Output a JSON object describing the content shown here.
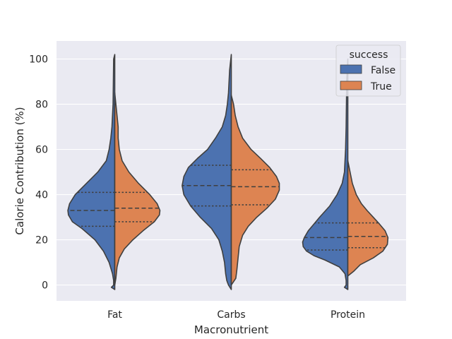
{
  "chart_data": {
    "type": "violin",
    "split": true,
    "inner": "quartile",
    "categories": [
      "Fat",
      "Carbs",
      "Protein"
    ],
    "xlabel": "Macronutrient",
    "ylabel": "Calorie Contribution (%)",
    "ylim": [
      -7,
      108
    ],
    "yticks": [
      0,
      20,
      40,
      60,
      80,
      100
    ],
    "grid": true,
    "legend": {
      "title": "success",
      "position": "top-right"
    },
    "series": [
      {
        "name": "False",
        "color": "#4c72b0",
        "violins": [
          {
            "category": "Fat",
            "quartiles": [
              26,
              33,
              41
            ],
            "profile": [
              [
                -2,
                0
              ],
              [
                -1,
                0.06
              ],
              [
                0,
                0.02
              ],
              [
                2,
                0.02
              ],
              [
                5,
                0.04
              ],
              [
                10,
                0.1
              ],
              [
                15,
                0.2
              ],
              [
                20,
                0.35
              ],
              [
                25,
                0.58
              ],
              [
                28,
                0.75
              ],
              [
                31,
                0.82
              ],
              [
                33,
                0.83
              ],
              [
                36,
                0.8
              ],
              [
                40,
                0.7
              ],
              [
                45,
                0.5
              ],
              [
                50,
                0.3
              ],
              [
                55,
                0.15
              ],
              [
                60,
                0.1
              ],
              [
                65,
                0.07
              ],
              [
                70,
                0.05
              ],
              [
                80,
                0.03
              ],
              [
                90,
                0.025
              ],
              [
                100,
                0.02
              ],
              [
                102,
                0
              ]
            ]
          },
          {
            "category": "Carbs",
            "quartiles": [
              35,
              44,
              53
            ],
            "profile": [
              [
                -2,
                0
              ],
              [
                0,
                0.05
              ],
              [
                2,
                0.08
              ],
              [
                5,
                0.1
              ],
              [
                10,
                0.12
              ],
              [
                15,
                0.16
              ],
              [
                20,
                0.22
              ],
              [
                25,
                0.35
              ],
              [
                30,
                0.55
              ],
              [
                35,
                0.72
              ],
              [
                40,
                0.84
              ],
              [
                44,
                0.87
              ],
              [
                48,
                0.84
              ],
              [
                52,
                0.76
              ],
              [
                56,
                0.6
              ],
              [
                60,
                0.42
              ],
              [
                65,
                0.28
              ],
              [
                70,
                0.16
              ],
              [
                75,
                0.1
              ],
              [
                80,
                0.07
              ],
              [
                85,
                0.05
              ],
              [
                95,
                0.03
              ],
              [
                102,
                0
              ]
            ]
          },
          {
            "category": "Protein",
            "quartiles": [
              15.5,
              21,
              27.5
            ],
            "profile": [
              [
                -2,
                0
              ],
              [
                -1,
                0.06
              ],
              [
                0,
                0.03
              ],
              [
                2,
                0.03
              ],
              [
                5,
                0.05
              ],
              [
                8,
                0.15
              ],
              [
                11,
                0.4
              ],
              [
                13,
                0.6
              ],
              [
                15,
                0.73
              ],
              [
                17,
                0.79
              ],
              [
                19,
                0.8
              ],
              [
                21,
                0.77
              ],
              [
                24,
                0.7
              ],
              [
                27,
                0.6
              ],
              [
                30,
                0.5
              ],
              [
                35,
                0.32
              ],
              [
                40,
                0.19
              ],
              [
                45,
                0.1
              ],
              [
                50,
                0.06
              ],
              [
                60,
                0.04
              ],
              [
                70,
                0.03
              ],
              [
                80,
                0.025
              ],
              [
                90,
                0.02
              ],
              [
                100,
                0
              ]
            ]
          }
        ]
      },
      {
        "name": "True",
        "color": "#dd8452",
        "violins": [
          {
            "category": "Fat",
            "quartiles": [
              28,
              34,
              41
            ],
            "profile": [
              [
                0,
                0
              ],
              [
                3,
                0.02
              ],
              [
                8,
                0.04
              ],
              [
                12,
                0.08
              ],
              [
                16,
                0.17
              ],
              [
                20,
                0.32
              ],
              [
                24,
                0.5
              ],
              [
                28,
                0.7
              ],
              [
                31,
                0.79
              ],
              [
                33,
                0.8
              ],
              [
                36,
                0.75
              ],
              [
                40,
                0.62
              ],
              [
                45,
                0.42
              ],
              [
                50,
                0.25
              ],
              [
                55,
                0.13
              ],
              [
                60,
                0.08
              ],
              [
                65,
                0.06
              ],
              [
                70,
                0.06
              ],
              [
                75,
                0.04
              ],
              [
                80,
                0.02
              ],
              [
                85,
                0
              ]
            ]
          },
          {
            "category": "Carbs",
            "quartiles": [
              35.5,
              43.5,
              51
            ],
            "profile": [
              [
                0,
                0
              ],
              [
                3,
                0.08
              ],
              [
                7,
                0.1
              ],
              [
                12,
                0.12
              ],
              [
                17,
                0.14
              ],
              [
                22,
                0.2
              ],
              [
                26,
                0.3
              ],
              [
                30,
                0.45
              ],
              [
                34,
                0.63
              ],
              [
                38,
                0.78
              ],
              [
                42,
                0.85
              ],
              [
                45,
                0.85
              ],
              [
                48,
                0.8
              ],
              [
                52,
                0.68
              ],
              [
                56,
                0.52
              ],
              [
                60,
                0.35
              ],
              [
                65,
                0.2
              ],
              [
                70,
                0.12
              ],
              [
                75,
                0.07
              ],
              [
                80,
                0.04
              ],
              [
                84,
                0
              ]
            ]
          },
          {
            "category": "Protein",
            "quartiles": [
              16.5,
              21.5,
              27.5
            ],
            "profile": [
              [
                4,
                0
              ],
              [
                6,
                0.1
              ],
              [
                9,
                0.22
              ],
              [
                12,
                0.45
              ],
              [
                15,
                0.62
              ],
              [
                18,
                0.7
              ],
              [
                21,
                0.71
              ],
              [
                24,
                0.66
              ],
              [
                27,
                0.56
              ],
              [
                30,
                0.45
              ],
              [
                33,
                0.34
              ],
              [
                36,
                0.24
              ],
              [
                40,
                0.15
              ],
              [
                45,
                0.08
              ],
              [
                50,
                0.04
              ],
              [
                55,
                0
              ]
            ]
          }
        ]
      }
    ]
  }
}
